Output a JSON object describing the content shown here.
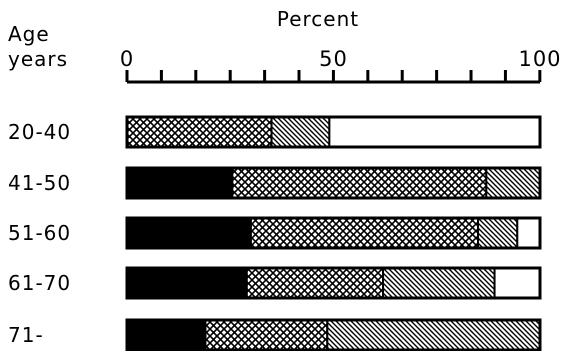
{
  "chart_data": {
    "type": "bar",
    "orientation": "horizontal",
    "stacked": true,
    "xlabel": "Percent",
    "ylabel_line1": "Age",
    "ylabel_line2": "years",
    "xlim": [
      0,
      100
    ],
    "xticks": [
      0,
      50,
      100
    ],
    "minor_tick_step": 8.33,
    "categories": [
      "20-40",
      "41-50",
      "51-60",
      "61-70",
      "71-"
    ],
    "segment_styles": [
      "solid",
      "crosshatch",
      "diagonal",
      "empty"
    ],
    "series": [
      {
        "values": [
          0,
          25.5,
          30,
          29,
          19
        ]
      },
      {
        "values": [
          35,
          61.5,
          55,
          33,
          29.5
        ]
      },
      {
        "values": [
          14,
          13,
          9.5,
          27,
          51.5
        ]
      },
      {
        "values": [
          51,
          0,
          5.5,
          11,
          0
        ]
      }
    ],
    "colors": {
      "ink": "#000000",
      "background": "#ffffff"
    }
  }
}
